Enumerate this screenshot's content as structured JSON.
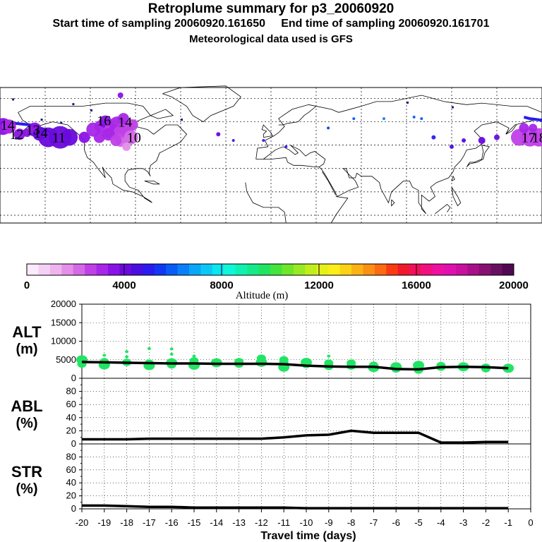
{
  "header": {
    "title": "Retroplume summary for p3_20060920",
    "subtitle": "Start time of sampling 20060920.161650     End time of sampling 20060920.161701",
    "met_note": "Meteorological data used is GFS"
  },
  "map": {
    "labels": [
      {
        "text": "14",
        "lon": -175,
        "lat": 58,
        "alt": 3200
      },
      {
        "text": "12",
        "lon": -169,
        "lat": 52,
        "alt": 3600
      },
      {
        "text": "13",
        "lon": -158,
        "lat": 55,
        "alt": 3700
      },
      {
        "text": "14",
        "lon": -153,
        "lat": 53,
        "alt": 3900
      },
      {
        "text": "11",
        "lon": -141,
        "lat": 50,
        "alt": 4200
      },
      {
        "text": "16",
        "lon": -111,
        "lat": 61,
        "alt": 3500
      },
      {
        "text": "14",
        "lon": -97,
        "lat": 60,
        "alt": 3200
      },
      {
        "text": "10",
        "lon": -91,
        "lat": 50,
        "alt": 2800
      },
      {
        "text": "17",
        "lon": 171,
        "lat": 50,
        "alt": 2900
      },
      {
        "text": "18",
        "lon": 178,
        "lat": 50,
        "alt": 2700
      }
    ]
  },
  "colorbar": {
    "ticks": [
      "0",
      "4000",
      "8000",
      "12000",
      "16000",
      "20000"
    ],
    "label": "Altitude (m)",
    "colors": [
      "#fbeafb",
      "#f5d0f5",
      "#eeb4ee",
      "#e48fe8",
      "#d46ae6",
      "#c040e8",
      "#a826e8",
      "#8a12e6",
      "#6a0adc",
      "#4a0ee0",
      "#2a1cf0",
      "#1238f4",
      "#0a5cf6",
      "#0a80f8",
      "#0aa6f8",
      "#0ac8f6",
      "#0ae6f0",
      "#10f6d8",
      "#10f0b0",
      "#14ea88",
      "#20e460",
      "#44e43c",
      "#6ee62a",
      "#98ea22",
      "#c0ee1c",
      "#e4f21a",
      "#fcee16",
      "#fcd214",
      "#fcb212",
      "#fc9012",
      "#fc6a12",
      "#fa3a12",
      "#f01a2a",
      "#f2105a",
      "#f21080",
      "#ee10a0",
      "#e010b0",
      "#c8109e",
      "#a81088",
      "#881070",
      "#681060",
      "#500850"
    ]
  },
  "chart_data": [
    {
      "type": "line",
      "panel": "ALT",
      "ylabel": "ALT\n(m)",
      "ylabel_line1": "ALT",
      "ylabel_line2": "(m)",
      "ylim": [
        0,
        20000
      ],
      "yticks": [
        "20000",
        "15000",
        "10000",
        "5000",
        "0"
      ],
      "x": [
        -20,
        -19,
        -18,
        -17,
        -16,
        -15,
        -14,
        -13,
        -12,
        -11,
        -10,
        -9,
        -8,
        -7,
        -6,
        -5,
        -4,
        -3,
        -2,
        -1
      ],
      "values": [
        4400,
        4300,
        4200,
        4100,
        4000,
        4000,
        3900,
        3900,
        3900,
        3800,
        3400,
        3200,
        3100,
        3100,
        2500,
        2400,
        3000,
        3100,
        3000,
        2700
      ],
      "scatter_points": [
        [
          -20,
          5000
        ],
        [
          -20,
          3800
        ],
        [
          -19,
          4500
        ],
        [
          -19,
          3600
        ],
        [
          -19,
          6200
        ],
        [
          -18,
          4300
        ],
        [
          -18,
          5800
        ],
        [
          -18,
          7200
        ],
        [
          -17,
          4100
        ],
        [
          -17,
          3400
        ],
        [
          -17,
          8000
        ],
        [
          -16,
          3600
        ],
        [
          -16,
          4200
        ],
        [
          -16,
          6500
        ],
        [
          -16,
          7900
        ],
        [
          -15,
          3500
        ],
        [
          -15,
          4700
        ],
        [
          -15,
          6000
        ],
        [
          -14,
          4200
        ],
        [
          -13,
          4500
        ],
        [
          -13,
          3800
        ],
        [
          -12,
          4300
        ],
        [
          -12,
          5400
        ],
        [
          -11,
          4400
        ],
        [
          -11,
          3000
        ],
        [
          -11,
          5000
        ],
        [
          -10,
          3700
        ],
        [
          -10,
          4300
        ],
        [
          -9,
          3200
        ],
        [
          -9,
          4100
        ],
        [
          -9,
          6000
        ],
        [
          -8,
          3300
        ],
        [
          -8,
          4100
        ],
        [
          -7,
          2900
        ],
        [
          -7,
          3500
        ],
        [
          -6,
          2500
        ],
        [
          -6,
          3100
        ],
        [
          -5,
          2400
        ],
        [
          -5,
          2200
        ],
        [
          -5,
          3500
        ],
        [
          -4,
          3000
        ],
        [
          -4,
          3400
        ],
        [
          -3,
          3100
        ],
        [
          -2,
          3000
        ],
        [
          -2,
          2600
        ],
        [
          -1,
          2700
        ]
      ]
    },
    {
      "type": "line",
      "panel": "ABL",
      "ylabel_line1": "ABL",
      "ylabel_line2": "(%)",
      "ylim": [
        0,
        100
      ],
      "yticks": [
        "80",
        "60",
        "40",
        "20",
        "0"
      ],
      "x": [
        -20,
        -19,
        -18,
        -17,
        -16,
        -15,
        -14,
        -13,
        -12,
        -11,
        -10,
        -9,
        -8,
        -7,
        -6,
        -5,
        -4,
        -3,
        -2,
        -1
      ],
      "values": [
        7,
        7,
        7,
        8,
        8,
        8,
        8,
        8,
        8,
        10,
        13,
        14,
        20,
        17,
        17,
        17,
        2,
        2,
        3,
        3
      ]
    },
    {
      "type": "line",
      "panel": "STR",
      "ylabel_line1": "STR",
      "ylabel_line2": "(%)",
      "ylim": [
        0,
        100
      ],
      "yticks": [
        "80",
        "60",
        "40",
        "20",
        "0"
      ],
      "x": [
        -20,
        -19,
        -18,
        -17,
        -16,
        -15,
        -14,
        -13,
        -12,
        -11,
        -10,
        -9,
        -8,
        -7,
        -6,
        -5,
        -4,
        -3,
        -2,
        -1
      ],
      "values": [
        5,
        5,
        4,
        3,
        3,
        2,
        2,
        2,
        2,
        2,
        1,
        1,
        1,
        1,
        1,
        1,
        1,
        1,
        1,
        1
      ]
    }
  ],
  "xaxis": {
    "ticks": [
      "-20",
      "-19",
      "-18",
      "-17",
      "-16",
      "-15",
      "-14",
      "-13",
      "-12",
      "-11",
      "-10",
      "-9",
      "-8",
      "-7",
      "-6",
      "-5",
      "-4",
      "-3",
      "-2",
      "-1",
      "0"
    ],
    "label": "Travel time (days)"
  }
}
